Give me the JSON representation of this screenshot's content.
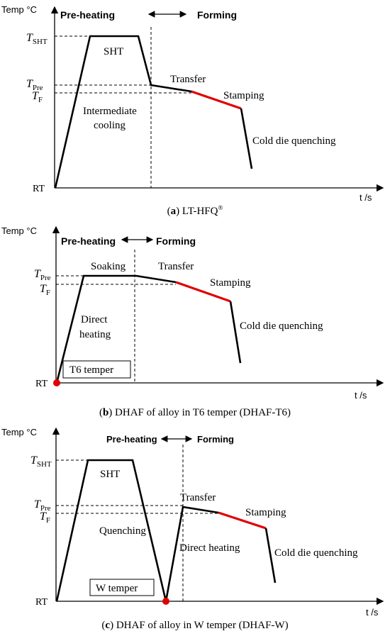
{
  "panel_a": {
    "y_label": "Temp  °C",
    "x_label": "t /s",
    "phase_left": "Pre-heating",
    "phase_right": "Forming",
    "tick_t_sht_main": "T",
    "tick_t_sht_sub": "SHT",
    "tick_t_pre_main": "T",
    "tick_t_pre_sub": "Pre",
    "tick_t_f_main": "T",
    "tick_t_f_sub": "F",
    "tick_rt": "RT",
    "label_sht": "SHT",
    "label_intermediate_1": "Intermediate",
    "label_intermediate_2": "cooling",
    "label_transfer": "Transfer",
    "label_stamping": "Stamping",
    "label_cold": "Cold die quenching",
    "caption_letter": "a",
    "caption_text": " LT-HFQ",
    "caption_mark": "®"
  },
  "panel_b": {
    "y_label": "Temp  °C",
    "x_label": "t /s",
    "phase_left": "Pre-heating",
    "phase_right": "Forming",
    "tick_t_pre_main": "T",
    "tick_t_pre_sub": "Pre",
    "tick_t_f_main": "T",
    "tick_t_f_sub": "F",
    "tick_rt": "RT",
    "label_soaking": "Soaking",
    "label_transfer": "Transfer",
    "label_stamping": "Stamping",
    "label_direct_1": "Direct",
    "label_direct_2": "heating",
    "label_cold": "Cold die quenching",
    "label_temper_box": "T6 temper",
    "caption_letter": "b",
    "caption_text": " DHAF of alloy in T6 temper (DHAF-T6)"
  },
  "panel_c": {
    "y_label": "Temp  °C",
    "x_label": "t /s",
    "phase_left": "Pre-heating",
    "phase_right": "Forming",
    "tick_t_sht_main": "T",
    "tick_t_sht_sub": "SHT",
    "tick_t_pre_main": "T",
    "tick_t_pre_sub": "Pre",
    "tick_t_f_main": "T",
    "tick_t_f_sub": "F",
    "tick_rt": "RT",
    "label_sht": "SHT",
    "label_quenching": "Quenching",
    "label_transfer": "Transfer",
    "label_stamping": "Stamping",
    "label_direct": "Direct heating",
    "label_cold": "Cold die quenching",
    "label_temper_box": "W temper",
    "caption_letter": "c",
    "caption_text": " DHAF of alloy in W temper (DHAF-W)"
  },
  "colors": {
    "curve": "#000000",
    "stamping": "#e00000",
    "point": "#e00000"
  }
}
